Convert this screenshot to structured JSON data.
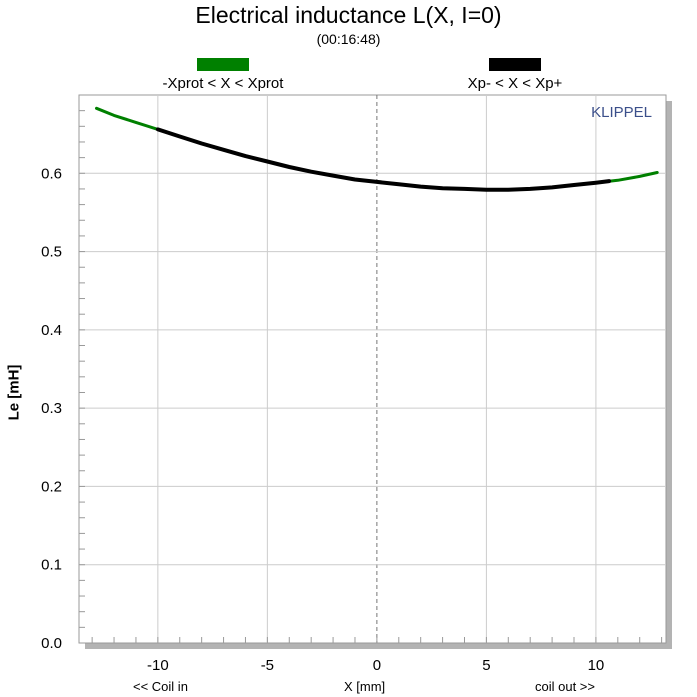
{
  "chart_data": {
    "type": "line",
    "title": "Electrical inductance L(X, I=0)",
    "subtitle": "(00:16:48)",
    "watermark": "KLIPPEL",
    "xlabel": "X [mm]",
    "ylabel": "Le [mH]",
    "x_left_note": "<< Coil in",
    "x_right_note": "coil out >>",
    "xlim": [
      -13.6,
      13.2
    ],
    "ylim": [
      0.0,
      0.7
    ],
    "xticks": [
      -10,
      -5,
      0,
      5,
      10
    ],
    "xtick_labels": [
      "-10",
      "-5",
      "0",
      "5",
      "10"
    ],
    "yticks": [
      0.0,
      0.1,
      0.2,
      0.3,
      0.4,
      0.5,
      0.6
    ],
    "ytick_labels": [
      "0.0",
      "0.1",
      "0.2",
      "0.3",
      "0.4",
      "0.5",
      "0.6"
    ],
    "grid": true,
    "legend_position": "top",
    "series": [
      {
        "name": "-Xprot < X < Xprot",
        "color": "#008000",
        "x": [
          -12.8,
          -12.0,
          -11.0,
          -10.0,
          -9.0,
          -8.0,
          -7.0,
          -6.0,
          -5.0,
          -4.0,
          -3.0,
          -2.0,
          -1.0,
          0.0,
          1.0,
          2.0,
          3.0,
          4.0,
          5.0,
          6.0,
          7.0,
          8.0,
          9.0,
          10.0,
          11.0,
          12.0,
          12.8
        ],
        "y": [
          0.683,
          0.674,
          0.665,
          0.656,
          0.647,
          0.638,
          0.63,
          0.622,
          0.615,
          0.608,
          0.602,
          0.597,
          0.592,
          0.589,
          0.586,
          0.583,
          0.581,
          0.58,
          0.579,
          0.579,
          0.58,
          0.582,
          0.585,
          0.588,
          0.591,
          0.596,
          0.601
        ]
      },
      {
        "name": "Xp- < X < Xp+",
        "color": "#000000",
        "x": [
          -10.0,
          -9.0,
          -8.0,
          -7.0,
          -6.0,
          -5.0,
          -4.0,
          -3.0,
          -2.0,
          -1.0,
          0.0,
          1.0,
          2.0,
          3.0,
          4.0,
          5.0,
          6.0,
          7.0,
          8.0,
          9.0,
          10.0,
          10.6
        ],
        "y": [
          0.656,
          0.647,
          0.638,
          0.63,
          0.622,
          0.615,
          0.608,
          0.602,
          0.597,
          0.592,
          0.589,
          0.586,
          0.583,
          0.581,
          0.58,
          0.579,
          0.579,
          0.58,
          0.582,
          0.585,
          0.588,
          0.59
        ]
      }
    ]
  }
}
